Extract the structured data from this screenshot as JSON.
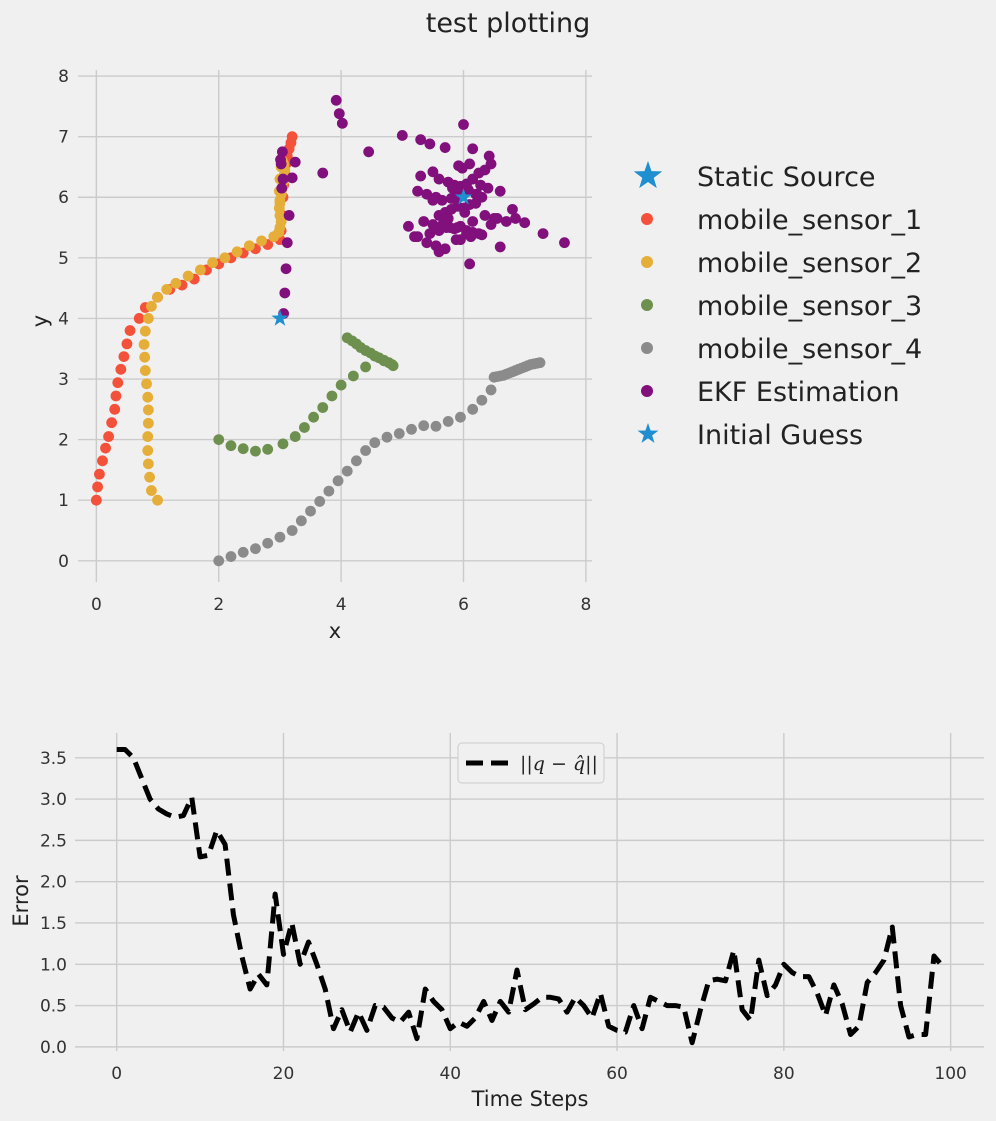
{
  "title": "test plotting",
  "chart_data": [
    {
      "type": "scatter",
      "xlabel": "x",
      "ylabel": "y",
      "xlim": [
        -0.3,
        8.1
      ],
      "ylim": [
        -0.35,
        8.1
      ],
      "xticks": [
        0,
        2,
        4,
        6,
        8
      ],
      "yticks": [
        0,
        1,
        2,
        3,
        4,
        5,
        6,
        7,
        8
      ],
      "grid": true,
      "legend_placement": "right",
      "legend": [
        "Static Source",
        "mobile_sensor_1",
        "mobile_sensor_2",
        "mobile_sensor_3",
        "mobile_sensor_4",
        "EKF Estimation",
        "Initial Guess"
      ],
      "colors": {
        "static_source": "#1f8fcf",
        "mobile_sensor_1": "#f4513a",
        "mobile_sensor_2": "#e5ae38",
        "mobile_sensor_3": "#6d904f",
        "mobile_sensor_4": "#8b8b8b",
        "ekf": "#810f7c",
        "initial_guess": "#1f8fcf"
      },
      "static_source": {
        "x": 6.0,
        "y": 6.0
      },
      "initial_guess": {
        "x": 3.0,
        "y": 4.0
      },
      "series": [
        {
          "name": "mobile_sensor_1",
          "x": [
            0.0,
            0.02,
            0.05,
            0.1,
            0.15,
            0.2,
            0.25,
            0.3,
            0.32,
            0.35,
            0.4,
            0.45,
            0.5,
            0.55,
            0.7,
            0.8,
            1.0,
            1.2,
            1.4,
            1.6,
            1.8,
            2.0,
            2.2,
            2.4,
            2.6,
            2.8,
            3.0,
            3.02,
            3.04,
            3.05,
            3.06,
            3.08,
            3.1,
            3.12,
            3.15,
            3.18,
            3.2
          ],
          "y": [
            1.0,
            1.22,
            1.43,
            1.65,
            1.86,
            2.05,
            2.28,
            2.5,
            2.72,
            2.94,
            3.16,
            3.37,
            3.58,
            3.8,
            4.0,
            4.18,
            4.35,
            4.48,
            4.55,
            4.65,
            4.8,
            4.9,
            5.0,
            5.08,
            5.15,
            5.22,
            5.3,
            5.45,
            5.7,
            6.0,
            6.2,
            6.4,
            6.55,
            6.68,
            6.8,
            6.9,
            7.0
          ]
        },
        {
          "name": "mobile_sensor_2",
          "x": [
            1.0,
            0.9,
            0.87,
            0.85,
            0.84,
            0.84,
            0.85,
            0.85,
            0.84,
            0.82,
            0.8,
            0.79,
            0.78,
            0.8,
            0.85,
            0.9,
            1.0,
            1.15,
            1.3,
            1.5,
            1.7,
            1.9,
            2.1,
            2.3,
            2.5,
            2.7,
            2.9,
            2.98,
            3.0,
            3.02,
            3.0,
            2.99,
            3.0,
            3.02,
            3.04,
            3.05,
            3.06,
            3.08,
            3.06,
            3.04,
            3.02,
            3.0,
            2.99,
            3.0
          ],
          "y": [
            1.0,
            1.16,
            1.38,
            1.6,
            1.82,
            2.05,
            2.27,
            2.49,
            2.7,
            2.92,
            3.14,
            3.36,
            3.57,
            3.79,
            4.0,
            4.2,
            4.35,
            4.48,
            4.58,
            4.7,
            4.8,
            4.92,
            5.0,
            5.1,
            5.2,
            5.28,
            5.35,
            5.42,
            5.5,
            5.6,
            5.7,
            5.82,
            5.95,
            6.05,
            6.15,
            6.25,
            6.35,
            6.45,
            6.55,
            6.6,
            6.5,
            6.3,
            6.1,
            5.9
          ]
        },
        {
          "name": "mobile_sensor_3",
          "x": [
            2.0,
            2.2,
            2.4,
            2.6,
            2.8,
            3.05,
            3.25,
            3.4,
            3.55,
            3.7,
            3.85,
            4.0,
            4.2,
            4.4,
            4.55,
            4.7,
            4.85,
            4.1,
            4.18,
            4.25,
            4.32,
            4.4,
            4.48,
            4.55,
            4.62,
            4.7,
            4.78,
            4.83
          ],
          "y": [
            2.0,
            1.9,
            1.85,
            1.81,
            1.84,
            1.93,
            2.05,
            2.2,
            2.37,
            2.53,
            2.72,
            2.9,
            3.05,
            3.2,
            3.38,
            3.3,
            3.22,
            3.68,
            3.63,
            3.58,
            3.52,
            3.47,
            3.43,
            3.38,
            3.35,
            3.31,
            3.27,
            3.24
          ]
        },
        {
          "name": "mobile_sensor_4",
          "x": [
            2.0,
            2.2,
            2.4,
            2.6,
            2.8,
            3.0,
            3.2,
            3.35,
            3.5,
            3.65,
            3.8,
            3.95,
            4.1,
            4.25,
            4.4,
            4.55,
            4.75,
            4.95,
            5.15,
            5.35,
            5.55,
            5.75,
            5.95,
            6.15,
            6.3,
            6.45,
            6.5,
            6.55,
            6.6,
            6.65,
            6.7,
            6.75,
            6.8,
            6.85,
            6.9,
            6.95,
            7.0,
            7.05,
            7.1,
            7.15,
            7.2,
            7.25
          ],
          "y": [
            0.0,
            0.07,
            0.14,
            0.2,
            0.29,
            0.39,
            0.5,
            0.66,
            0.82,
            0.98,
            1.15,
            1.32,
            1.48,
            1.65,
            1.82,
            1.95,
            2.04,
            2.1,
            2.17,
            2.23,
            2.22,
            2.3,
            2.37,
            2.5,
            2.65,
            2.82,
            3.03,
            3.04,
            3.05,
            3.06,
            3.08,
            3.1,
            3.12,
            3.14,
            3.16,
            3.18,
            3.2,
            3.22,
            3.24,
            3.25,
            3.26,
            3.27
          ]
        },
        {
          "name": "EKF Estimation",
          "x": [
            3.92,
            3.97,
            4.02,
            3.7,
            4.45,
            5.0,
            5.3,
            5.45,
            5.7,
            6.0,
            6.15,
            6.42,
            6.1,
            5.3,
            5.5,
            5.6,
            5.75,
            5.85,
            5.95,
            6.05,
            6.15,
            6.25,
            6.35,
            6.45,
            5.25,
            5.4,
            5.55,
            5.65,
            5.8,
            5.9,
            6.05,
            6.2,
            6.3,
            6.4,
            6.6,
            5.1,
            5.35,
            5.5,
            5.6,
            5.7,
            5.8,
            5.9,
            6.0,
            6.1,
            6.2,
            6.35,
            6.5,
            5.2,
            5.45,
            5.6,
            5.72,
            5.85,
            5.95,
            6.05,
            6.15,
            6.25,
            6.45,
            6.7,
            6.85,
            7.0,
            7.3,
            7.65,
            5.4,
            5.55,
            5.7,
            5.88,
            6.12,
            6.3,
            6.6,
            6.8,
            5.25,
            5.6,
            5.78,
            5.95,
            6.1,
            6.55,
            5.5,
            5.75,
            5.9,
            6.05,
            6.15,
            3.25,
            3.2,
            3.15,
            3.12,
            3.1,
            3.08,
            3.06,
            3.04,
            3.02,
            3.05,
            3.03,
            3.01,
            6.0,
            5.82,
            6.02,
            6.22,
            5.66,
            5.98,
            5.92,
            6.08,
            6.28
          ],
          "y": [
            7.6,
            7.38,
            7.22,
            6.4,
            6.75,
            7.02,
            6.95,
            6.88,
            6.82,
            7.2,
            6.8,
            6.68,
            6.55,
            6.35,
            6.42,
            6.3,
            6.25,
            6.2,
            6.18,
            6.22,
            6.3,
            6.4,
            6.45,
            6.55,
            6.1,
            6.05,
            6.0,
            5.95,
            5.98,
            6.02,
            6.1,
            6.05,
            6.0,
            6.15,
            6.1,
            5.52,
            5.6,
            5.55,
            5.7,
            5.75,
            5.8,
            5.85,
            5.82,
            5.88,
            5.9,
            5.7,
            5.65,
            5.35,
            5.4,
            5.45,
            5.5,
            5.48,
            5.52,
            5.45,
            5.42,
            5.4,
            5.55,
            5.6,
            5.65,
            5.58,
            5.4,
            5.25,
            5.25,
            5.2,
            5.15,
            5.3,
            5.35,
            5.38,
            5.18,
            5.8,
            5.35,
            5.1,
            5.5,
            5.3,
            4.9,
            5.65,
            5.95,
            5.65,
            5.5,
            5.4,
            5.6,
            6.58,
            6.32,
            5.7,
            5.25,
            4.82,
            4.42,
            4.08,
            6.75,
            6.55,
            6.3,
            6.15,
            6.62,
            6.08,
            6.15,
            5.75,
            6.05,
            5.55,
            6.48,
            6.52,
            6.12,
            6.2
          ]
        }
      ]
    },
    {
      "type": "line",
      "xlabel": "Time Steps",
      "ylabel": "Error",
      "xlim": [
        -5,
        104
      ],
      "ylim": [
        -0.05,
        3.8
      ],
      "xticks": [
        0,
        20,
        40,
        60,
        80,
        100
      ],
      "yticks": [
        0.0,
        0.5,
        1.0,
        1.5,
        2.0,
        2.5,
        3.0,
        3.5
      ],
      "grid": true,
      "legend_placement": "upper center",
      "legend": [
        "||q − q̂||"
      ],
      "series": [
        {
          "name": "||q − q̂||",
          "color": "#000000",
          "style": "dashed",
          "x": [
            0,
            1,
            2,
            3,
            4,
            5,
            6,
            7,
            8,
            9,
            10,
            11,
            12,
            13,
            14,
            15,
            16,
            17,
            18,
            19,
            20,
            21,
            22,
            23,
            24,
            25,
            26,
            27,
            28,
            29,
            30,
            31,
            32,
            33,
            34,
            35,
            36,
            37,
            38,
            39,
            40,
            41,
            42,
            43,
            44,
            45,
            46,
            47,
            48,
            49,
            50,
            51,
            52,
            53,
            54,
            55,
            56,
            57,
            58,
            59,
            60,
            61,
            62,
            63,
            64,
            65,
            66,
            67,
            68,
            69,
            70,
            71,
            72,
            73,
            74,
            75,
            76,
            77,
            78,
            79,
            80,
            81,
            82,
            83,
            84,
            85,
            86,
            87,
            88,
            89,
            90,
            91,
            92,
            93,
            94,
            95,
            96,
            97,
            98,
            99
          ],
          "y": [
            3.6,
            3.6,
            3.5,
            3.25,
            3.0,
            2.88,
            2.82,
            2.78,
            2.8,
            3.02,
            2.3,
            2.32,
            2.62,
            2.45,
            1.6,
            1.1,
            0.7,
            0.88,
            0.75,
            1.85,
            1.12,
            1.5,
            1.0,
            1.27,
            1.0,
            0.7,
            0.22,
            0.45,
            0.18,
            0.42,
            0.2,
            0.5,
            0.48,
            0.35,
            0.3,
            0.42,
            0.1,
            0.7,
            0.55,
            0.45,
            0.22,
            0.3,
            0.25,
            0.35,
            0.55,
            0.32,
            0.55,
            0.42,
            0.93,
            0.45,
            0.52,
            0.6,
            0.6,
            0.58,
            0.42,
            0.6,
            0.5,
            0.35,
            0.65,
            0.25,
            0.2,
            0.18,
            0.5,
            0.22,
            0.6,
            0.55,
            0.5,
            0.5,
            0.48,
            0.05,
            0.45,
            0.8,
            0.82,
            0.8,
            1.17,
            0.45,
            0.32,
            1.05,
            0.62,
            0.75,
            1.0,
            0.9,
            0.85,
            0.85,
            0.65,
            0.38,
            0.75,
            0.52,
            0.15,
            0.25,
            0.78,
            0.9,
            1.05,
            1.45,
            0.5,
            0.12,
            0.15,
            0.15,
            1.1,
            0.98
          ]
        }
      ]
    }
  ]
}
